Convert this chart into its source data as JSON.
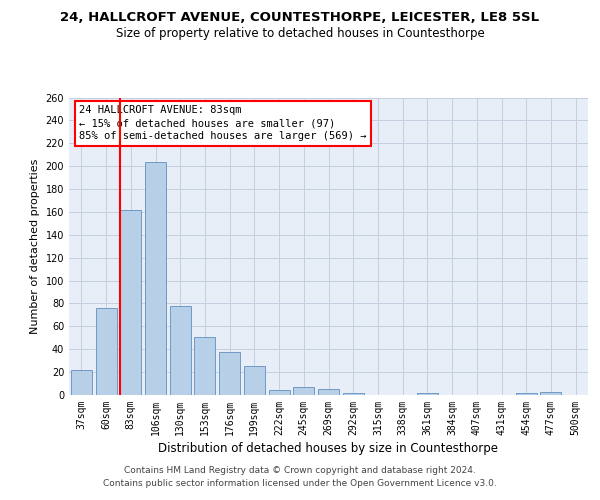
{
  "title1": "24, HALLCROFT AVENUE, COUNTESTHORPE, LEICESTER, LE8 5SL",
  "title2": "Size of property relative to detached houses in Countesthorpe",
  "xlabel": "Distribution of detached houses by size in Countesthorpe",
  "ylabel": "Number of detached properties",
  "categories": [
    "37sqm",
    "60sqm",
    "83sqm",
    "106sqm",
    "130sqm",
    "153sqm",
    "176sqm",
    "199sqm",
    "222sqm",
    "245sqm",
    "269sqm",
    "292sqm",
    "315sqm",
    "338sqm",
    "361sqm",
    "384sqm",
    "407sqm",
    "431sqm",
    "454sqm",
    "477sqm",
    "500sqm"
  ],
  "values": [
    22,
    76,
    162,
    204,
    78,
    51,
    38,
    25,
    4,
    7,
    5,
    2,
    0,
    0,
    2,
    0,
    0,
    0,
    2,
    3,
    0
  ],
  "red_line_bar_index": 2,
  "bar_color": "#b8cfe8",
  "bar_edge_color": "#6090c0",
  "ylim": [
    0,
    260
  ],
  "yticks": [
    0,
    20,
    40,
    60,
    80,
    100,
    120,
    140,
    160,
    180,
    200,
    220,
    240,
    260
  ],
  "annotation_line1": "24 HALLCROFT AVENUE: 83sqm",
  "annotation_line2": "← 15% of detached houses are smaller (97)",
  "annotation_line3": "85% of semi-detached houses are larger (569) →",
  "footer1": "Contains HM Land Registry data © Crown copyright and database right 2024.",
  "footer2": "Contains public sector information licensed under the Open Government Licence v3.0.",
  "bg_color": "#e8eef8",
  "grid_color": "#c4cfe0",
  "title1_fontsize": 9.5,
  "title2_fontsize": 8.5,
  "ylabel_fontsize": 8,
  "xlabel_fontsize": 8.5,
  "tick_fontsize": 7,
  "annotation_fontsize": 7.5,
  "footer_fontsize": 6.5
}
